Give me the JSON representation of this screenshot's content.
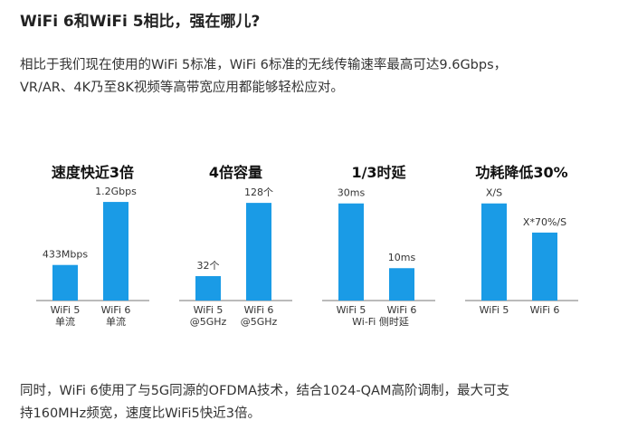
{
  "article": {
    "heading": "WiFi 6和WiFi 5相比，强在哪儿?",
    "intro_lines": [
      "相比于我们现在使用的WiFi 5标准，WiFi 6标准的无线传输速率最高可达9.6Gbps，",
      "VR/AR、4K乃至8K视频等高带宽应用都能够轻松应对。"
    ],
    "outro_lines": [
      "同时，WiFi 6使用了与5G同源的OFDMA技术，结合1024-QAM高阶调制，最大可支",
      "持160MHz频宽，速度比WiFi5快近3倍。"
    ]
  },
  "colors": {
    "bar": "#1a9be6",
    "panel_title": "#111111",
    "axis": "#777777",
    "label": "#333333"
  },
  "chart_data": [
    {
      "type": "bar",
      "title": "速度快近3倍",
      "categories": [
        "WiFi 5\n单流",
        "WiFi 6\n单流"
      ],
      "values": [
        433,
        1200
      ],
      "data_labels": [
        "433Mbps",
        "1.2Gbps"
      ],
      "xlabel": "",
      "ylabel": "",
      "ylim": [
        0,
        1300
      ],
      "grid": false
    },
    {
      "type": "bar",
      "title": "4倍容量",
      "categories": [
        "WiFi 5\n@5GHz",
        "WiFi 6\n@5GHz"
      ],
      "values": [
        32,
        128
      ],
      "data_labels": [
        "32个",
        "128个"
      ],
      "xlabel": "",
      "ylabel": "",
      "ylim": [
        0,
        140
      ],
      "grid": false
    },
    {
      "type": "bar",
      "title": "1/3时延",
      "categories": [
        "WiFi 5",
        "WiFi 6"
      ],
      "values": [
        30,
        10
      ],
      "data_labels": [
        "30ms",
        "10ms"
      ],
      "xlabel": "Wi-Fi 侧时延",
      "ylabel": "",
      "ylim": [
        0,
        33
      ],
      "grid": false
    },
    {
      "type": "bar",
      "title": "功耗降低30%",
      "categories": [
        "WiFi 5",
        "WiFi 6"
      ],
      "values": [
        1,
        0.7
      ],
      "data_labels": [
        "X/S",
        "X*70%/S"
      ],
      "xlabel": "",
      "ylabel": "",
      "ylim": [
        0,
        1.1
      ],
      "grid": false
    }
  ]
}
